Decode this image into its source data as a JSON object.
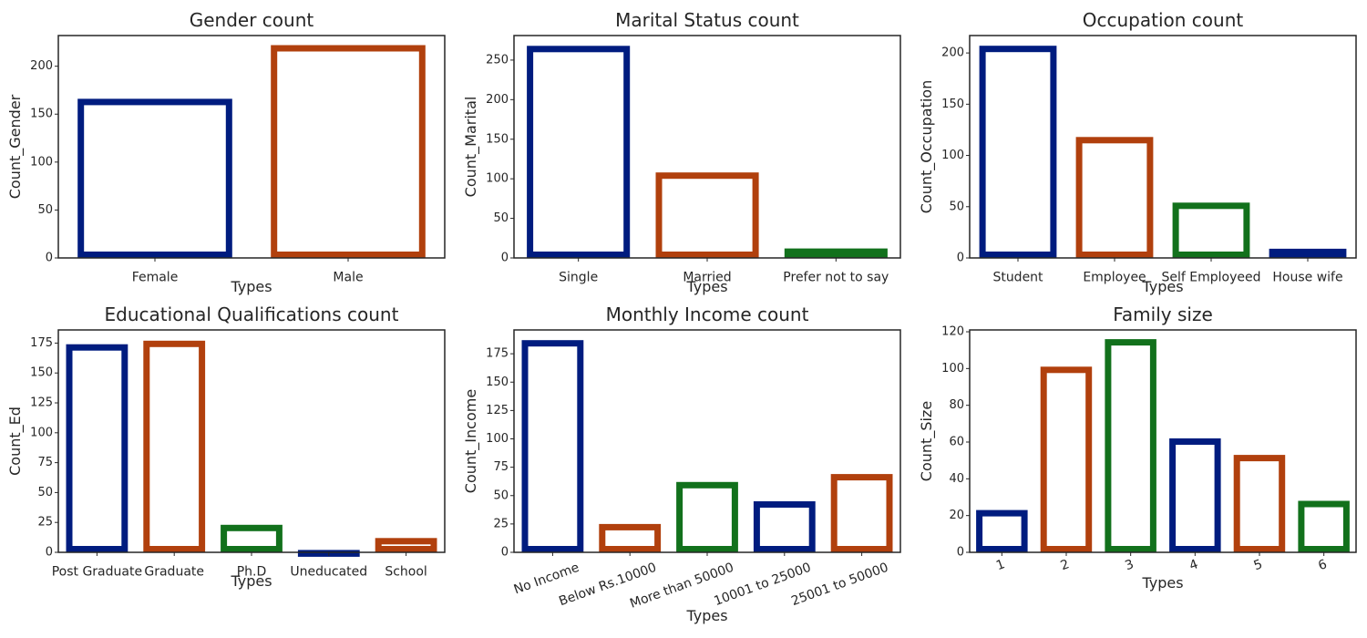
{
  "chart_data": [
    {
      "type": "bar",
      "title": "Gender count",
      "xlabel": "Types",
      "ylabel": "Count_Gender",
      "categories": [
        "Female",
        "Male"
      ],
      "values": [
        166,
        222
      ],
      "colors": [
        "#001c7f",
        "#b1400d"
      ],
      "ylim": [
        0,
        232
      ],
      "yticks": [
        0,
        50,
        100,
        150,
        200
      ],
      "grid": false
    },
    {
      "type": "bar",
      "title": "Marital Status count",
      "xlabel": "Types",
      "ylabel": "Count_Marital",
      "categories": [
        "Single",
        "Married",
        "Prefer not to say"
      ],
      "values": [
        268,
        108,
        12
      ],
      "colors": [
        "#001c7f",
        "#b1400d",
        "#12711c"
      ],
      "ylim": [
        0,
        281
      ],
      "yticks": [
        0,
        50,
        100,
        150,
        200,
        250
      ],
      "grid": false
    },
    {
      "type": "bar",
      "title": "Occupation count",
      "xlabel": "Types",
      "ylabel": "Count_Occupation",
      "categories": [
        "Student",
        "Employee",
        "Self Employeed",
        "House wife"
      ],
      "values": [
        207,
        118,
        54,
        9
      ],
      "colors": [
        "#001c7f",
        "#b1400d",
        "#12711c",
        "#001c7f"
      ],
      "ylim": [
        0,
        217
      ],
      "yticks": [
        0,
        50,
        100,
        150,
        200
      ],
      "grid": false
    },
    {
      "type": "bar",
      "title": "Educational Qualifications count",
      "xlabel": "Types",
      "ylabel": "Count_Ed",
      "categories": [
        "Post Graduate",
        "Graduate",
        "Ph.D",
        "Uneducated",
        "School"
      ],
      "values": [
        174,
        177,
        23,
        2,
        12
      ],
      "colors": [
        "#001c7f",
        "#b1400d",
        "#12711c",
        "#001c7f",
        "#b1400d"
      ],
      "ylim": [
        0,
        186
      ],
      "yticks": [
        0,
        25,
        50,
        75,
        100,
        125,
        150,
        175
      ],
      "grid": false
    },
    {
      "type": "bar",
      "title": "Monthly Income count",
      "xlabel": "Types",
      "ylabel": "Count_Income",
      "categories": [
        "No Income",
        "Below Rs.10000",
        "More than 50000",
        "10001 to 25000",
        "25001 to 50000"
      ],
      "values": [
        187,
        25,
        62,
        45,
        69
      ],
      "colors": [
        "#001c7f",
        "#b1400d",
        "#12711c",
        "#001c7f",
        "#b1400d"
      ],
      "ylim": [
        0,
        196
      ],
      "yticks": [
        0,
        25,
        50,
        75,
        100,
        125,
        150,
        175
      ],
      "rotate_labels": true,
      "grid": false
    },
    {
      "type": "bar",
      "title": "Family size",
      "xlabel": "Types",
      "ylabel": "Count_Size",
      "categories": [
        "1",
        "2",
        "3",
        "4",
        "5",
        "6"
      ],
      "values": [
        23,
        101,
        116,
        62,
        53,
        28
      ],
      "colors": [
        "#001c7f",
        "#b1400d",
        "#12711c",
        "#001c7f",
        "#b1400d",
        "#12711c"
      ],
      "ylim": [
        0,
        121
      ],
      "yticks": [
        0,
        20,
        40,
        60,
        80,
        100,
        120
      ],
      "rotate_labels": true,
      "grid": false
    }
  ]
}
